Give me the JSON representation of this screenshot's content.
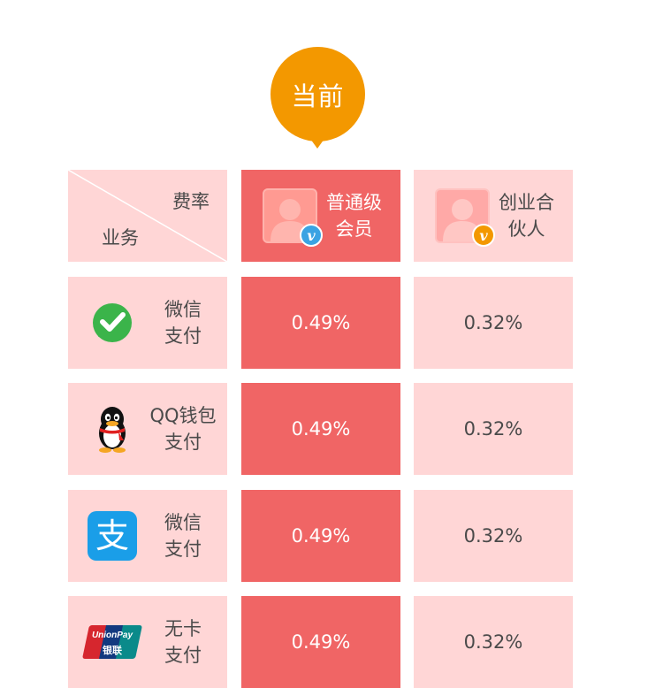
{
  "badge": {
    "label": "当前"
  },
  "header": {
    "corner_top": "费率",
    "corner_bottom": "业务",
    "tier_current_line1": "普通级",
    "tier_current_line2": "会员",
    "tier_partner_line1": "创业合",
    "tier_partner_line2": "伙人",
    "badge_letter": "v"
  },
  "rows": [
    {
      "icon": "wechat-icon",
      "label_line1": "微信",
      "label_line2": "支付",
      "rate_current": "0.49%",
      "rate_partner": "0.32%"
    },
    {
      "icon": "qq-icon",
      "label_line1": "QQ钱包",
      "label_line2": "支付",
      "rate_current": "0.49%",
      "rate_partner": "0.32%"
    },
    {
      "icon": "alipay-icon",
      "label_line1": "微信",
      "label_line2": "支付",
      "rate_current": "0.49%",
      "rate_partner": "0.32%"
    },
    {
      "icon": "unionpay-icon",
      "label_line1": "无卡",
      "label_line2": "支付",
      "rate_current": "0.49%",
      "rate_partner": "0.32%"
    }
  ],
  "logos": {
    "unionpay_text": "UnionPay",
    "unionpay_cn": "银联",
    "alipay_glyph": "支"
  },
  "colors": {
    "accent_orange": "#f39800",
    "current_column": "#f06565",
    "cell_background": "#ffd6d6",
    "badge_blue": "#3aa3e3"
  }
}
